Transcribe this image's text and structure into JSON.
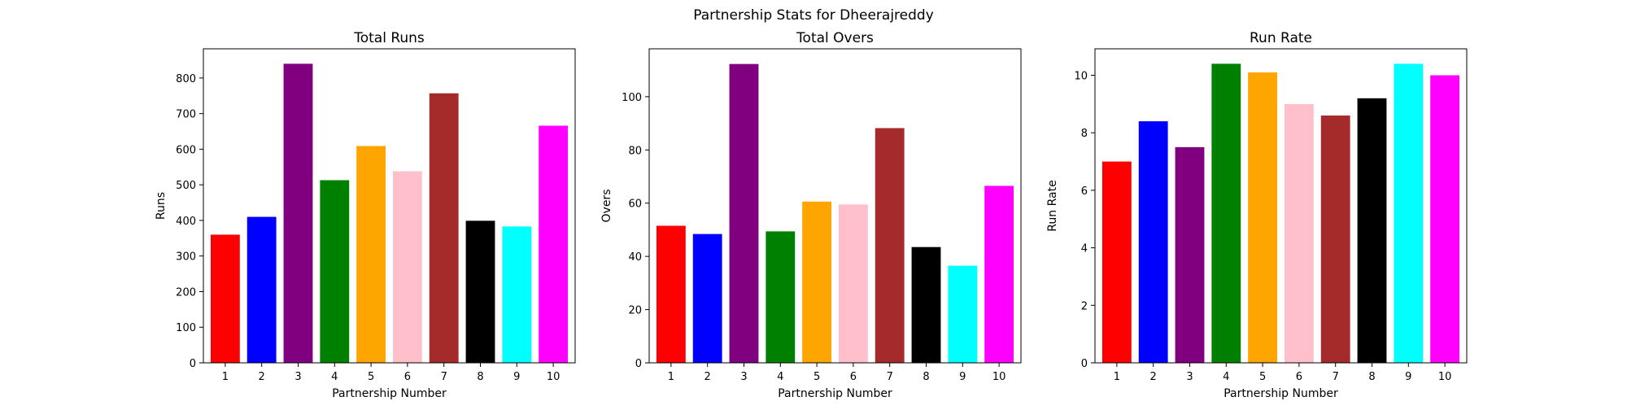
{
  "figure_title": "Partnership Stats for Dheerajreddy",
  "chart_data": [
    {
      "type": "bar",
      "title": "Total Runs",
      "xlabel": "Partnership Number",
      "ylabel": "Runs",
      "categories": [
        "1",
        "2",
        "3",
        "4",
        "5",
        "6",
        "7",
        "8",
        "9",
        "10"
      ],
      "values": [
        360,
        410,
        840,
        513,
        609,
        538,
        757,
        399,
        383,
        666
      ],
      "colors": [
        "#ff0000",
        "#0000ff",
        "#800080",
        "#008000",
        "#ffa500",
        "#ffc0cb",
        "#a52a2a",
        "#000000",
        "#00ffff",
        "#ff00ff"
      ],
      "ylim": [
        0,
        882
      ],
      "yticks": [
        0,
        100,
        200,
        300,
        400,
        500,
        600,
        700,
        800
      ],
      "grid": false
    },
    {
      "type": "bar",
      "title": "Total Overs",
      "xlabel": "Partnership Number",
      "ylabel": "Overs",
      "categories": [
        "1",
        "2",
        "3",
        "4",
        "5",
        "6",
        "7",
        "8",
        "9",
        "10"
      ],
      "values": [
        51.5,
        48.4,
        112.3,
        49.4,
        60.6,
        59.5,
        88.2,
        43.5,
        36.5,
        66.5
      ],
      "colors": [
        "#ff0000",
        "#0000ff",
        "#800080",
        "#008000",
        "#ffa500",
        "#ffc0cb",
        "#a52a2a",
        "#000000",
        "#00ffff",
        "#ff00ff"
      ],
      "ylim": [
        0,
        118
      ],
      "yticks": [
        0,
        20,
        40,
        60,
        80,
        100
      ],
      "grid": false
    },
    {
      "type": "bar",
      "title": "Run Rate",
      "xlabel": "Partnership Number",
      "ylabel": "Run Rate",
      "categories": [
        "1",
        "2",
        "3",
        "4",
        "5",
        "6",
        "7",
        "8",
        "9",
        "10"
      ],
      "values": [
        7.0,
        8.4,
        7.5,
        10.4,
        10.1,
        9.0,
        8.6,
        9.2,
        10.4,
        10.0
      ],
      "colors": [
        "#ff0000",
        "#0000ff",
        "#800080",
        "#008000",
        "#ffa500",
        "#ffc0cb",
        "#a52a2a",
        "#000000",
        "#00ffff",
        "#ff00ff"
      ],
      "ylim": [
        0,
        10.92
      ],
      "yticks": [
        0,
        2,
        4,
        6,
        8,
        10
      ],
      "grid": false
    }
  ]
}
